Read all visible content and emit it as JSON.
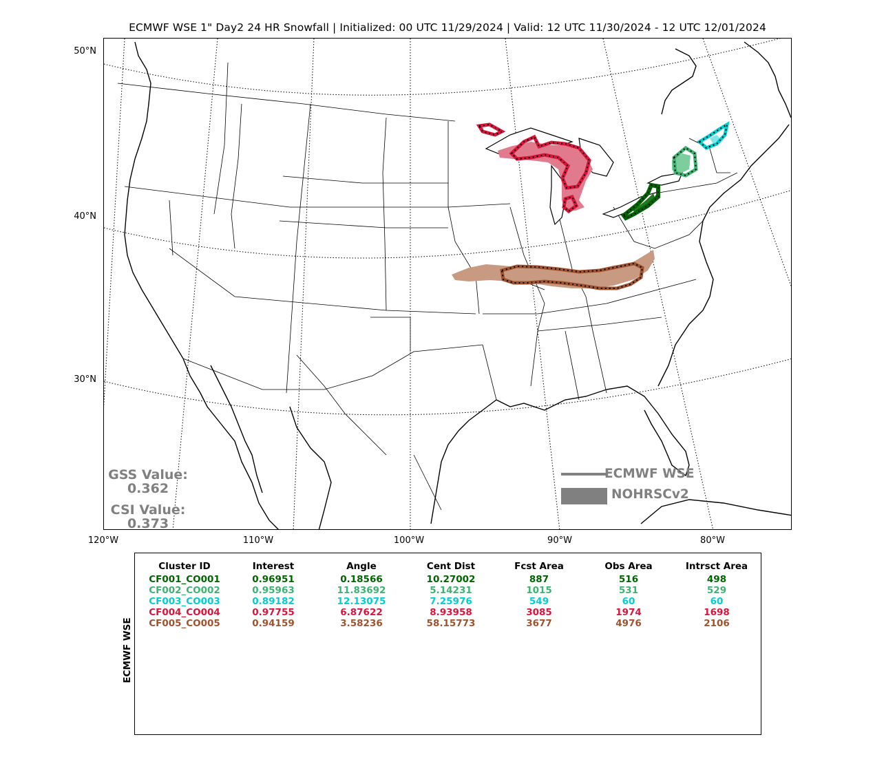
{
  "title": "ECMWF WSE 1\" Day2 24 HR Snowfall | Initialized: 00 UTC 11/29/2024 | Valid: 12 UTC 11/30/2024 - 12 UTC 12/01/2024",
  "lat_labels": [
    "50°N",
    "40°N",
    "30°N"
  ],
  "lon_labels": [
    "120°W",
    "110°W",
    "100°W",
    "90°W",
    "80°W"
  ],
  "scores": {
    "gss_label": "GSS Value:",
    "gss_value": "0.362",
    "csi_label": "CSI Value:",
    "csi_value": "0.373"
  },
  "legend": {
    "forecast_label": "ECMWF WSE",
    "observed_label": "NOHRSCv2",
    "color": "#808080"
  },
  "table": {
    "side_label": "ECMWF WSE",
    "headers": [
      "Cluster ID",
      "Interest",
      "Angle",
      "Cent Dist",
      "Fcst Area",
      "Obs Area",
      "Intrsct Area"
    ],
    "rows": [
      {
        "color": "#006400",
        "cells": [
          "CF001_CO001",
          "0.96951",
          "0.18566",
          "10.27002",
          "887",
          "516",
          "498"
        ]
      },
      {
        "color": "#3cb371",
        "cells": [
          "CF002_CO002",
          "0.95963",
          "11.83692",
          "5.14231",
          "1015",
          "531",
          "529"
        ]
      },
      {
        "color": "#00ced1",
        "cells": [
          "CF003_CO003",
          "0.89182",
          "12.13075",
          "7.25976",
          "549",
          "60",
          "60"
        ]
      },
      {
        "color": "#dc143c",
        "cells": [
          "CF004_CO004",
          "0.97755",
          "6.87622",
          "8.93958",
          "3085",
          "1974",
          "1698"
        ]
      },
      {
        "color": "#a0522d",
        "cells": [
          "CF005_CO005",
          "0.94159",
          "3.58236",
          "58.15773",
          "3677",
          "4976",
          "2106"
        ]
      }
    ]
  },
  "clusters": [
    {
      "id": "CF001_CO001",
      "color": "#006400",
      "fill": "#1f7a1f"
    },
    {
      "id": "CF002_CO002",
      "color": "#3cb371",
      "fill": "#7ccf9c"
    },
    {
      "id": "CF003_CO003",
      "color": "#00ced1",
      "fill": "#7fe6e8"
    },
    {
      "id": "CF004_CO004",
      "color": "#dc143c",
      "fill": "#e07a8c"
    },
    {
      "id": "CF005_CO005",
      "color": "#a0522d",
      "fill": "#c99a82"
    }
  ]
}
